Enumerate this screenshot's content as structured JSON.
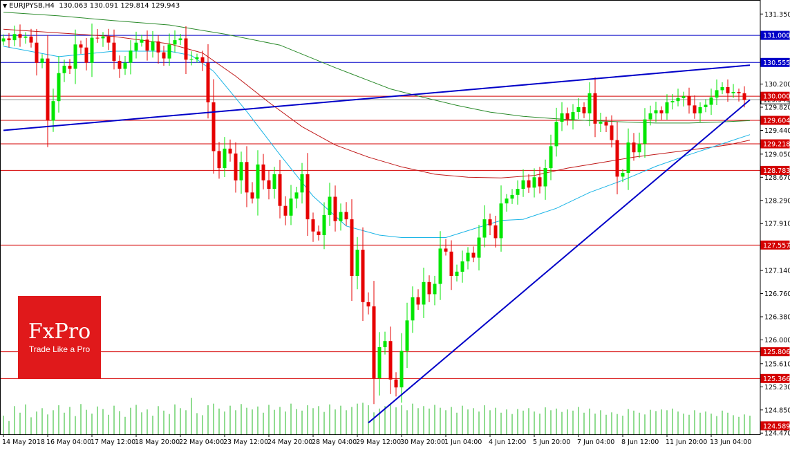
{
  "header": {
    "symbol": "EURJPYSB,H4",
    "ohlc": "130.063 130.091 129.814 129.943"
  },
  "logo": {
    "brand": "FxPro",
    "tagline": "Trade Like a Pro"
  },
  "colors": {
    "bull": "#00e600",
    "bear": "#e60000",
    "level_line": "#d40000",
    "blue_level": "#0000c8",
    "trend": "#0000c8",
    "ma_green": "#2a8a2a",
    "ma_red": "#c01818",
    "ma_cyan": "#19b4e6",
    "volume": "#22b822",
    "label_red": "#d40000",
    "label_blue": "#0000c8"
  },
  "chart_data": {
    "type": "candlestick",
    "ylim": [
      124.45,
      131.58
    ],
    "y_ticks": [
      "131.350",
      "130.970",
      "130.580",
      "130.200",
      "129.820",
      "129.440",
      "129.050",
      "128.670",
      "128.290",
      "127.910",
      "127.530",
      "127.140",
      "126.760",
      "126.380",
      "126.000",
      "125.610",
      "125.230",
      "124.850",
      "124.470"
    ],
    "x_labels": [
      {
        "index": 0,
        "label": "14 May 2018"
      },
      {
        "index": 8,
        "label": "16 May 04:00"
      },
      {
        "index": 16,
        "label": "17 May 12:00"
      },
      {
        "index": 24,
        "label": "18 May 20:00"
      },
      {
        "index": 32,
        "label": "22 May 04:00"
      },
      {
        "index": 40,
        "label": "23 May 12:00"
      },
      {
        "index": 48,
        "label": "24 May 20:00"
      },
      {
        "index": 56,
        "label": "28 May 04:00"
      },
      {
        "index": 64,
        "label": "29 May 12:00"
      },
      {
        "index": 72,
        "label": "30 May 20:00"
      },
      {
        "index": 80,
        "label": "1 Jun 04:00"
      },
      {
        "index": 88,
        "label": "4 Jun 12:00"
      },
      {
        "index": 96,
        "label": "5 Jun 20:00"
      },
      {
        "index": 104,
        "label": "7 Jun 04:00"
      },
      {
        "index": 112,
        "label": "8 Jun 12:00"
      },
      {
        "index": 120,
        "label": "11 Jun 20:00"
      },
      {
        "index": 128,
        "label": "13 Jun 04:00"
      }
    ],
    "levels": [
      {
        "value": 131.0,
        "label": "131.000",
        "style": "blue"
      },
      {
        "value": 130.555,
        "label": "130.555",
        "style": "blue"
      },
      {
        "value": 130.0,
        "label": "130.000",
        "style": "red"
      },
      {
        "value": 129.604,
        "label": "129.604",
        "style": "red"
      },
      {
        "value": 129.218,
        "label": "129.218",
        "style": "red"
      },
      {
        "value": 128.783,
        "label": "128.783",
        "style": "red"
      },
      {
        "value": 127.557,
        "label": "127.557",
        "style": "red"
      },
      {
        "value": 125.806,
        "label": "125.806",
        "style": "red"
      },
      {
        "value": 125.366,
        "label": "125.366",
        "style": "red"
      }
    ],
    "current_price": {
      "value": 129.943,
      "label": "129.943"
    },
    "bottom_label": {
      "value": 124.589,
      "label": "124.589"
    },
    "trendlines": [
      {
        "x1": 0,
        "y1": 129.44,
        "x2": 135,
        "y2": 130.51
      },
      {
        "x1": 66,
        "y1": 124.64,
        "x2": 135,
        "y2": 129.94
      }
    ],
    "closes": [
      130.95,
      130.92,
      131.02,
      130.96,
      130.98,
      130.88,
      130.55,
      130.62,
      129.6,
      129.92,
      130.38,
      130.5,
      130.45,
      130.85,
      130.8,
      130.55,
      130.96,
      130.95,
      130.98,
      130.88,
      130.58,
      130.45,
      130.55,
      130.75,
      130.88,
      130.93,
      130.75,
      130.9,
      130.72,
      130.62,
      130.85,
      130.92,
      130.95,
      130.6,
      130.61,
      130.64,
      130.55,
      129.9,
      129.1,
      128.82,
      129.14,
      129.06,
      128.62,
      128.92,
      128.42,
      128.32,
      128.88,
      128.62,
      128.48,
      128.72,
      128.2,
      128.04,
      128.32,
      128.42,
      128.72,
      127.98,
      127.78,
      127.72,
      128.05,
      128.35,
      127.95,
      128.1,
      127.98,
      127.05,
      127.48,
      126.62,
      126.55,
      125.37,
      125.88,
      125.98,
      125.35,
      125.22,
      125.82,
      126.32,
      126.7,
      126.58,
      126.95,
      126.75,
      126.92,
      127.5,
      127.45,
      127.05,
      127.12,
      127.29,
      127.43,
      127.35,
      127.68,
      127.98,
      127.88,
      127.67,
      128.24,
      128.32,
      128.38,
      128.48,
      128.62,
      128.5,
      128.67,
      128.52,
      128.82,
      129.18,
      129.58,
      129.72,
      129.62,
      129.74,
      129.82,
      129.72,
      130.05,
      129.55,
      129.58,
      129.52,
      129.28,
      128.68,
      128.74,
      129.24,
      129.08,
      129.22,
      129.62,
      129.72,
      129.77,
      129.72,
      129.9,
      129.92,
      129.97,
      130.0,
      129.85,
      129.72,
      129.82,
      129.86,
      129.98,
      130.1,
      130.15,
      130.05,
      130.07,
      130.05,
      129.94
    ],
    "ma": [
      {
        "name": "",
        "color": "ma_green",
        "points": [
          [
            0,
            131.38
          ],
          [
            10,
            131.32
          ],
          [
            20,
            131.24
          ],
          [
            30,
            131.17
          ],
          [
            40,
            131.02
          ],
          [
            50,
            130.84
          ],
          [
            60,
            130.47
          ],
          [
            66,
            130.26
          ],
          [
            70,
            130.12
          ],
          [
            76,
            129.98
          ],
          [
            82,
            129.85
          ],
          [
            88,
            129.74
          ],
          [
            94,
            129.67
          ],
          [
            100,
            129.63
          ],
          [
            106,
            129.6
          ],
          [
            112,
            129.58
          ],
          [
            118,
            129.56
          ],
          [
            124,
            129.56
          ],
          [
            130,
            129.58
          ],
          [
            135,
            129.6
          ]
        ]
      },
      {
        "name": "",
        "color": "ma_red",
        "points": [
          [
            0,
            131.1
          ],
          [
            10,
            131.04
          ],
          [
            20,
            130.98
          ],
          [
            30,
            130.86
          ],
          [
            36,
            130.71
          ],
          [
            42,
            130.33
          ],
          [
            48,
            129.9
          ],
          [
            54,
            129.5
          ],
          [
            60,
            129.2
          ],
          [
            66,
            129.0
          ],
          [
            72,
            128.84
          ],
          [
            78,
            128.72
          ],
          [
            84,
            128.67
          ],
          [
            90,
            128.66
          ],
          [
            96,
            128.7
          ],
          [
            102,
            128.82
          ],
          [
            108,
            128.91
          ],
          [
            114,
            129.0
          ],
          [
            120,
            129.07
          ],
          [
            126,
            129.14
          ],
          [
            131,
            129.2
          ],
          [
            135,
            129.28
          ]
        ]
      },
      {
        "name": "",
        "color": "ma_cyan",
        "points": [
          [
            0,
            130.82
          ],
          [
            10,
            130.65
          ],
          [
            20,
            130.74
          ],
          [
            30,
            130.74
          ],
          [
            34,
            130.67
          ],
          [
            38,
            130.41
          ],
          [
            44,
            129.75
          ],
          [
            50,
            129.04
          ],
          [
            56,
            128.36
          ],
          [
            62,
            127.87
          ],
          [
            68,
            127.72
          ],
          [
            72,
            127.68
          ],
          [
            76,
            127.68
          ],
          [
            80,
            127.68
          ],
          [
            86,
            127.85
          ],
          [
            90,
            127.96
          ],
          [
            94,
            127.98
          ],
          [
            100,
            128.16
          ],
          [
            106,
            128.42
          ],
          [
            112,
            128.62
          ],
          [
            118,
            128.85
          ],
          [
            124,
            129.04
          ],
          [
            130,
            129.22
          ],
          [
            135,
            129.37
          ]
        ]
      }
    ],
    "volumes": [
      0.45,
      0.32,
      0.68,
      0.52,
      0.72,
      0.41,
      0.55,
      0.63,
      0.48,
      0.58,
      0.7,
      0.52,
      0.66,
      0.44,
      0.73,
      0.59,
      0.5,
      0.67,
      0.61,
      0.47,
      0.69,
      0.56,
      0.42,
      0.64,
      0.71,
      0.53,
      0.6,
      0.45,
      0.68,
      0.57,
      0.49,
      0.72,
      0.63,
      0.58,
      0.88,
      0.51,
      0.46,
      0.7,
      0.74,
      0.62,
      0.55,
      0.69,
      0.58,
      0.73,
      0.64,
      0.6,
      0.67,
      0.52,
      0.71,
      0.59,
      0.66,
      0.55,
      0.74,
      0.61,
      0.57,
      0.7,
      0.63,
      0.68,
      0.54,
      0.72,
      0.6,
      0.69,
      0.58,
      0.66,
      0.74,
      0.76,
      0.7,
      0.53,
      0.62,
      0.68,
      0.72,
      0.65,
      0.7,
      0.58,
      0.74,
      0.63,
      0.68,
      0.62,
      0.71,
      0.64,
      0.58,
      0.66,
      0.52,
      0.69,
      0.6,
      0.63,
      0.55,
      0.7,
      0.58,
      0.64,
      0.52,
      0.6,
      0.49,
      0.61,
      0.57,
      0.63,
      0.55,
      0.5,
      0.65,
      0.58,
      0.62,
      0.54,
      0.6,
      0.57,
      0.66,
      0.52,
      0.62,
      0.5,
      0.58,
      0.47,
      0.53,
      0.49,
      0.45,
      0.61,
      0.57,
      0.52,
      0.48,
      0.59,
      0.56,
      0.6,
      0.58,
      0.62,
      0.55,
      0.5,
      0.47,
      0.58,
      0.52,
      0.55,
      0.5,
      0.44,
      0.57,
      0.52,
      0.46,
      0.42,
      0.48,
      0.45
    ]
  }
}
